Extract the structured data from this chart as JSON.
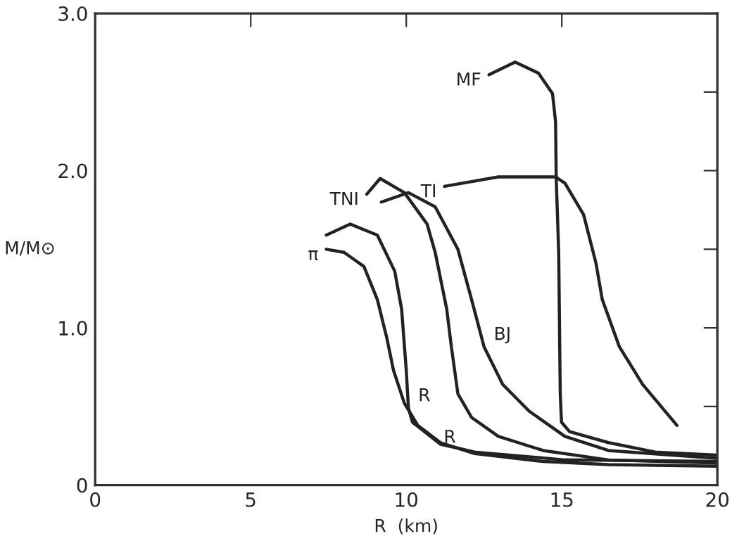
{
  "chart_data": {
    "type": "line",
    "xlabel": "R  (km)",
    "ylabel": "M/M⊙",
    "xlim": [
      0,
      20
    ],
    "ylim": [
      0,
      3.0
    ],
    "xticks": [
      0,
      5,
      10,
      15,
      20
    ],
    "yticks": [
      {
        "value": 0,
        "label": "0"
      },
      {
        "value": 0.5,
        "label": null
      },
      {
        "value": 1.0,
        "label": "1.0"
      },
      {
        "value": 1.5,
        "label": null
      },
      {
        "value": 2.0,
        "label": "2.0"
      },
      {
        "value": 2.5,
        "label": null
      },
      {
        "value": 3.0,
        "label": "3.0"
      }
    ],
    "grid": false,
    "legend": false,
    "marker": "none",
    "line_style": "solid",
    "series": [
      {
        "name": "π",
        "color": "#222222",
        "x": [
          7.43,
          8.0,
          8.64,
          9.07,
          9.37,
          9.59,
          9.94,
          10.37,
          11.1,
          12.2,
          14.4,
          16.5,
          20
        ],
        "values": [
          1.5,
          1.48,
          1.39,
          1.18,
          0.94,
          0.73,
          0.52,
          0.38,
          0.27,
          0.2,
          0.15,
          0.13,
          0.12
        ]
      },
      {
        "name": "R",
        "color": "#222222",
        "x": [
          7.43,
          8.2,
          9.07,
          9.63,
          9.85,
          10.0,
          10.07,
          10.2,
          11.1,
          12.2,
          15.1,
          20
        ],
        "values": [
          1.59,
          1.66,
          1.59,
          1.36,
          1.12,
          0.73,
          0.49,
          0.4,
          0.26,
          0.21,
          0.16,
          0.15
        ]
      },
      {
        "name": "TNI",
        "color": "#222222",
        "x": [
          8.73,
          9.16,
          9.94,
          10.67,
          10.93,
          11.3,
          11.45,
          11.66,
          12.1,
          12.96,
          14.4,
          16.5,
          20
        ],
        "values": [
          1.85,
          1.95,
          1.86,
          1.66,
          1.48,
          1.12,
          0.88,
          0.58,
          0.43,
          0.31,
          0.22,
          0.16,
          0.14
        ]
      },
      {
        "name": "BJ",
        "color": "#222222",
        "x": [
          9.2,
          10.07,
          10.93,
          11.66,
          12.1,
          12.5,
          13.1,
          13.95,
          15.1,
          16.5,
          20
        ],
        "values": [
          1.8,
          1.86,
          1.77,
          1.5,
          1.18,
          0.88,
          0.64,
          0.47,
          0.31,
          0.22,
          0.17
        ]
      },
      {
        "name": "TI",
        "color": "#222222",
        "x": [
          11.23,
          12.96,
          14.8,
          15.1,
          15.7,
          16.1,
          16.3,
          16.85,
          17.6,
          18.7
        ],
        "values": [
          1.9,
          1.96,
          1.96,
          1.92,
          1.72,
          1.41,
          1.18,
          0.88,
          0.64,
          0.38
        ]
      },
      {
        "name": "MF",
        "color": "#222222",
        "x": [
          12.66,
          13.5,
          14.25,
          14.7,
          14.8,
          14.82,
          14.9,
          14.95,
          14.99,
          15.25,
          16.5,
          18,
          20
        ],
        "values": [
          2.61,
          2.69,
          2.62,
          2.49,
          2.31,
          1.95,
          1.48,
          0.58,
          0.4,
          0.34,
          0.27,
          0.21,
          0.19
        ]
      }
    ],
    "annotations": [
      "R"
    ]
  }
}
